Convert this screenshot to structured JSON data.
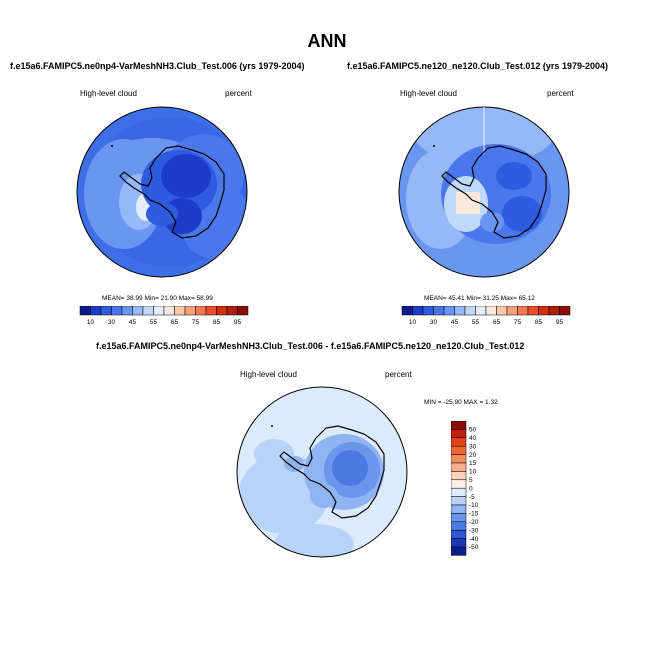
{
  "title": "ANN",
  "panels": [
    {
      "title": "f.e15a6.FAMIPC5.ne0np4-VarMeshNH3.Club_Test.006 (yrs 1979-2004)",
      "variable": "High-level cloud",
      "units": "percent",
      "stats": {
        "mean_label": "MEAN=",
        "mean": "38.99",
        "min_label": "Min=",
        "min": "21.90",
        "max_label": "Max=",
        "max": "58.99"
      }
    },
    {
      "title": "f.e15a6.FAMIPC5.ne120_ne120.Club_Test.012 (yrs 1979-2004)",
      "variable": "High-level cloud",
      "units": "percent",
      "stats": {
        "mean_label": "MEAN=",
        "mean": "45.41",
        "min_label": "Min=",
        "min": "31.25",
        "max_label": "Max=",
        "max": "65.12"
      }
    },
    {
      "title": "f.e15a6.FAMIPC5.ne0np4-VarMeshNH3.Club_Test.006 - f.e15a6.FAMIPC5.ne120_ne120.Club_Test.012",
      "variable": "High-level cloud",
      "units": "percent",
      "stats_text": "MIN = -25.90 MAX =   1.32"
    }
  ],
  "colorbar_abs": {
    "labels": [
      "10",
      "30",
      "45",
      "55",
      "65",
      "75",
      "85",
      "95"
    ],
    "colors": [
      "#0c1e8c",
      "#1e3cc8",
      "#2e5ce0",
      "#4a78ec",
      "#6a96f2",
      "#96b8f6",
      "#c0d8fa",
      "#e2eefc",
      "#fbe8dc",
      "#fbc8ac",
      "#f7a07c",
      "#f2784e",
      "#e8502a",
      "#d22e12",
      "#b01e0c",
      "#8a0e06"
    ]
  },
  "colorbar_diff": {
    "labels": [
      "50",
      "40",
      "30",
      "20",
      "15",
      "10",
      "5",
      "0",
      "-5",
      "-10",
      "-15",
      "-20",
      "-30",
      "-40",
      "-50"
    ],
    "colors": [
      "#8a0e06",
      "#c0200c",
      "#e0421c",
      "#f06838",
      "#f48c60",
      "#f8ae8c",
      "#fbd2bc",
      "#fdeee4",
      "#dcebfc",
      "#b8d2f8",
      "#90b4f2",
      "#6c96ec",
      "#4c7ae2",
      "#2e58d2",
      "#1a38b4",
      "#0c1e8c"
    ]
  }
}
